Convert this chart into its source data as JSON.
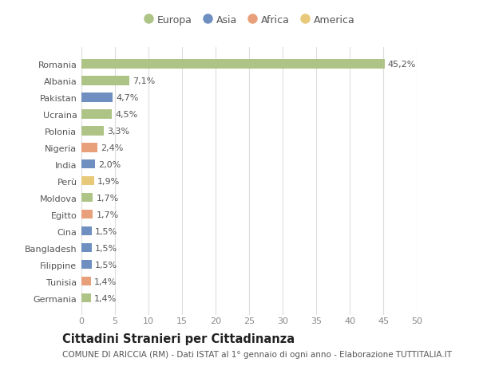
{
  "categories": [
    "Romania",
    "Albania",
    "Pakistan",
    "Ucraina",
    "Polonia",
    "Nigeria",
    "India",
    "Perù",
    "Moldova",
    "Egitto",
    "Cina",
    "Bangladesh",
    "Filippine",
    "Tunisia",
    "Germania"
  ],
  "values": [
    45.2,
    7.1,
    4.7,
    4.5,
    3.3,
    2.4,
    2.0,
    1.9,
    1.7,
    1.7,
    1.5,
    1.5,
    1.5,
    1.4,
    1.4
  ],
  "labels": [
    "45,2%",
    "7,1%",
    "4,7%",
    "4,5%",
    "3,3%",
    "2,4%",
    "2,0%",
    "1,9%",
    "1,7%",
    "1,7%",
    "1,5%",
    "1,5%",
    "1,5%",
    "1,4%",
    "1,4%"
  ],
  "colors": [
    "#aec486",
    "#aec486",
    "#6e8fbf",
    "#aec486",
    "#aec486",
    "#e8a07a",
    "#6e8fbf",
    "#e8c97a",
    "#aec486",
    "#e8a07a",
    "#6e8fbf",
    "#6e8fbf",
    "#6e8fbf",
    "#e8a07a",
    "#aec486"
  ],
  "legend": [
    {
      "label": "Europa",
      "color": "#aec486"
    },
    {
      "label": "Asia",
      "color": "#6e8fbf"
    },
    {
      "label": "Africa",
      "color": "#e8a07a"
    },
    {
      "label": "America",
      "color": "#e8c97a"
    }
  ],
  "xlim": [
    0,
    50
  ],
  "xticks": [
    0,
    5,
    10,
    15,
    20,
    25,
    30,
    35,
    40,
    45,
    50
  ],
  "title": "Cittadini Stranieri per Cittadinanza",
  "subtitle": "COMUNE DI ARICCIA (RM) - Dati ISTAT al 1° gennaio di ogni anno - Elaborazione TUTTITALIA.IT",
  "bg_color": "#ffffff",
  "grid_color": "#dddddd",
  "bar_height": 0.55,
  "label_fontsize": 8.0,
  "tick_fontsize": 8.0,
  "title_fontsize": 10.5,
  "subtitle_fontsize": 7.5
}
